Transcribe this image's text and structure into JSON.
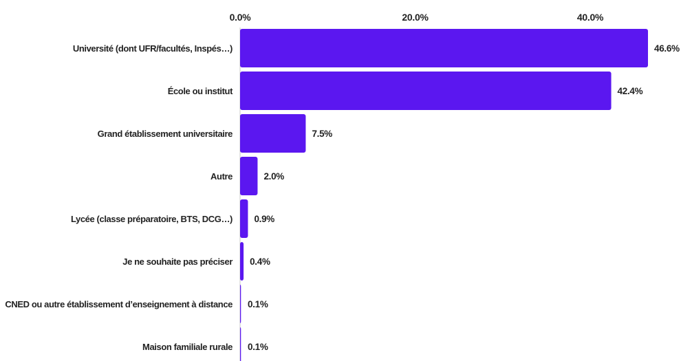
{
  "chart_data": {
    "type": "bar",
    "orientation": "horizontal",
    "categories": [
      "Université (dont UFR/facultés, Inspés…)",
      "École ou institut",
      "Grand établissement universitaire",
      "Autre",
      "Lycée (classe préparatoire, BTS, DCG…)",
      "Je ne souhaite pas préciser",
      "CNED ou autre établissement d’enseignement à distance",
      "Maison familiale rurale"
    ],
    "values": [
      46.6,
      42.4,
      7.5,
      2.0,
      0.9,
      0.4,
      0.1,
      0.1
    ],
    "value_labels": [
      "46.6%",
      "42.4%",
      "7.5%",
      "2.0%",
      "0.9%",
      "0.4%",
      "0.1%",
      "0.1%"
    ],
    "x_ticks": [
      0,
      20,
      40
    ],
    "x_tick_labels": [
      "0.0%",
      "20.0%",
      "40.0%"
    ],
    "xlim": [
      0,
      46.6
    ],
    "axis_position": "top",
    "grid": false,
    "title": "",
    "xlabel": "",
    "ylabel": "",
    "colors": {
      "bar": "#5b17f0",
      "axis": "#c8c8c8",
      "text": "#222222"
    }
  }
}
